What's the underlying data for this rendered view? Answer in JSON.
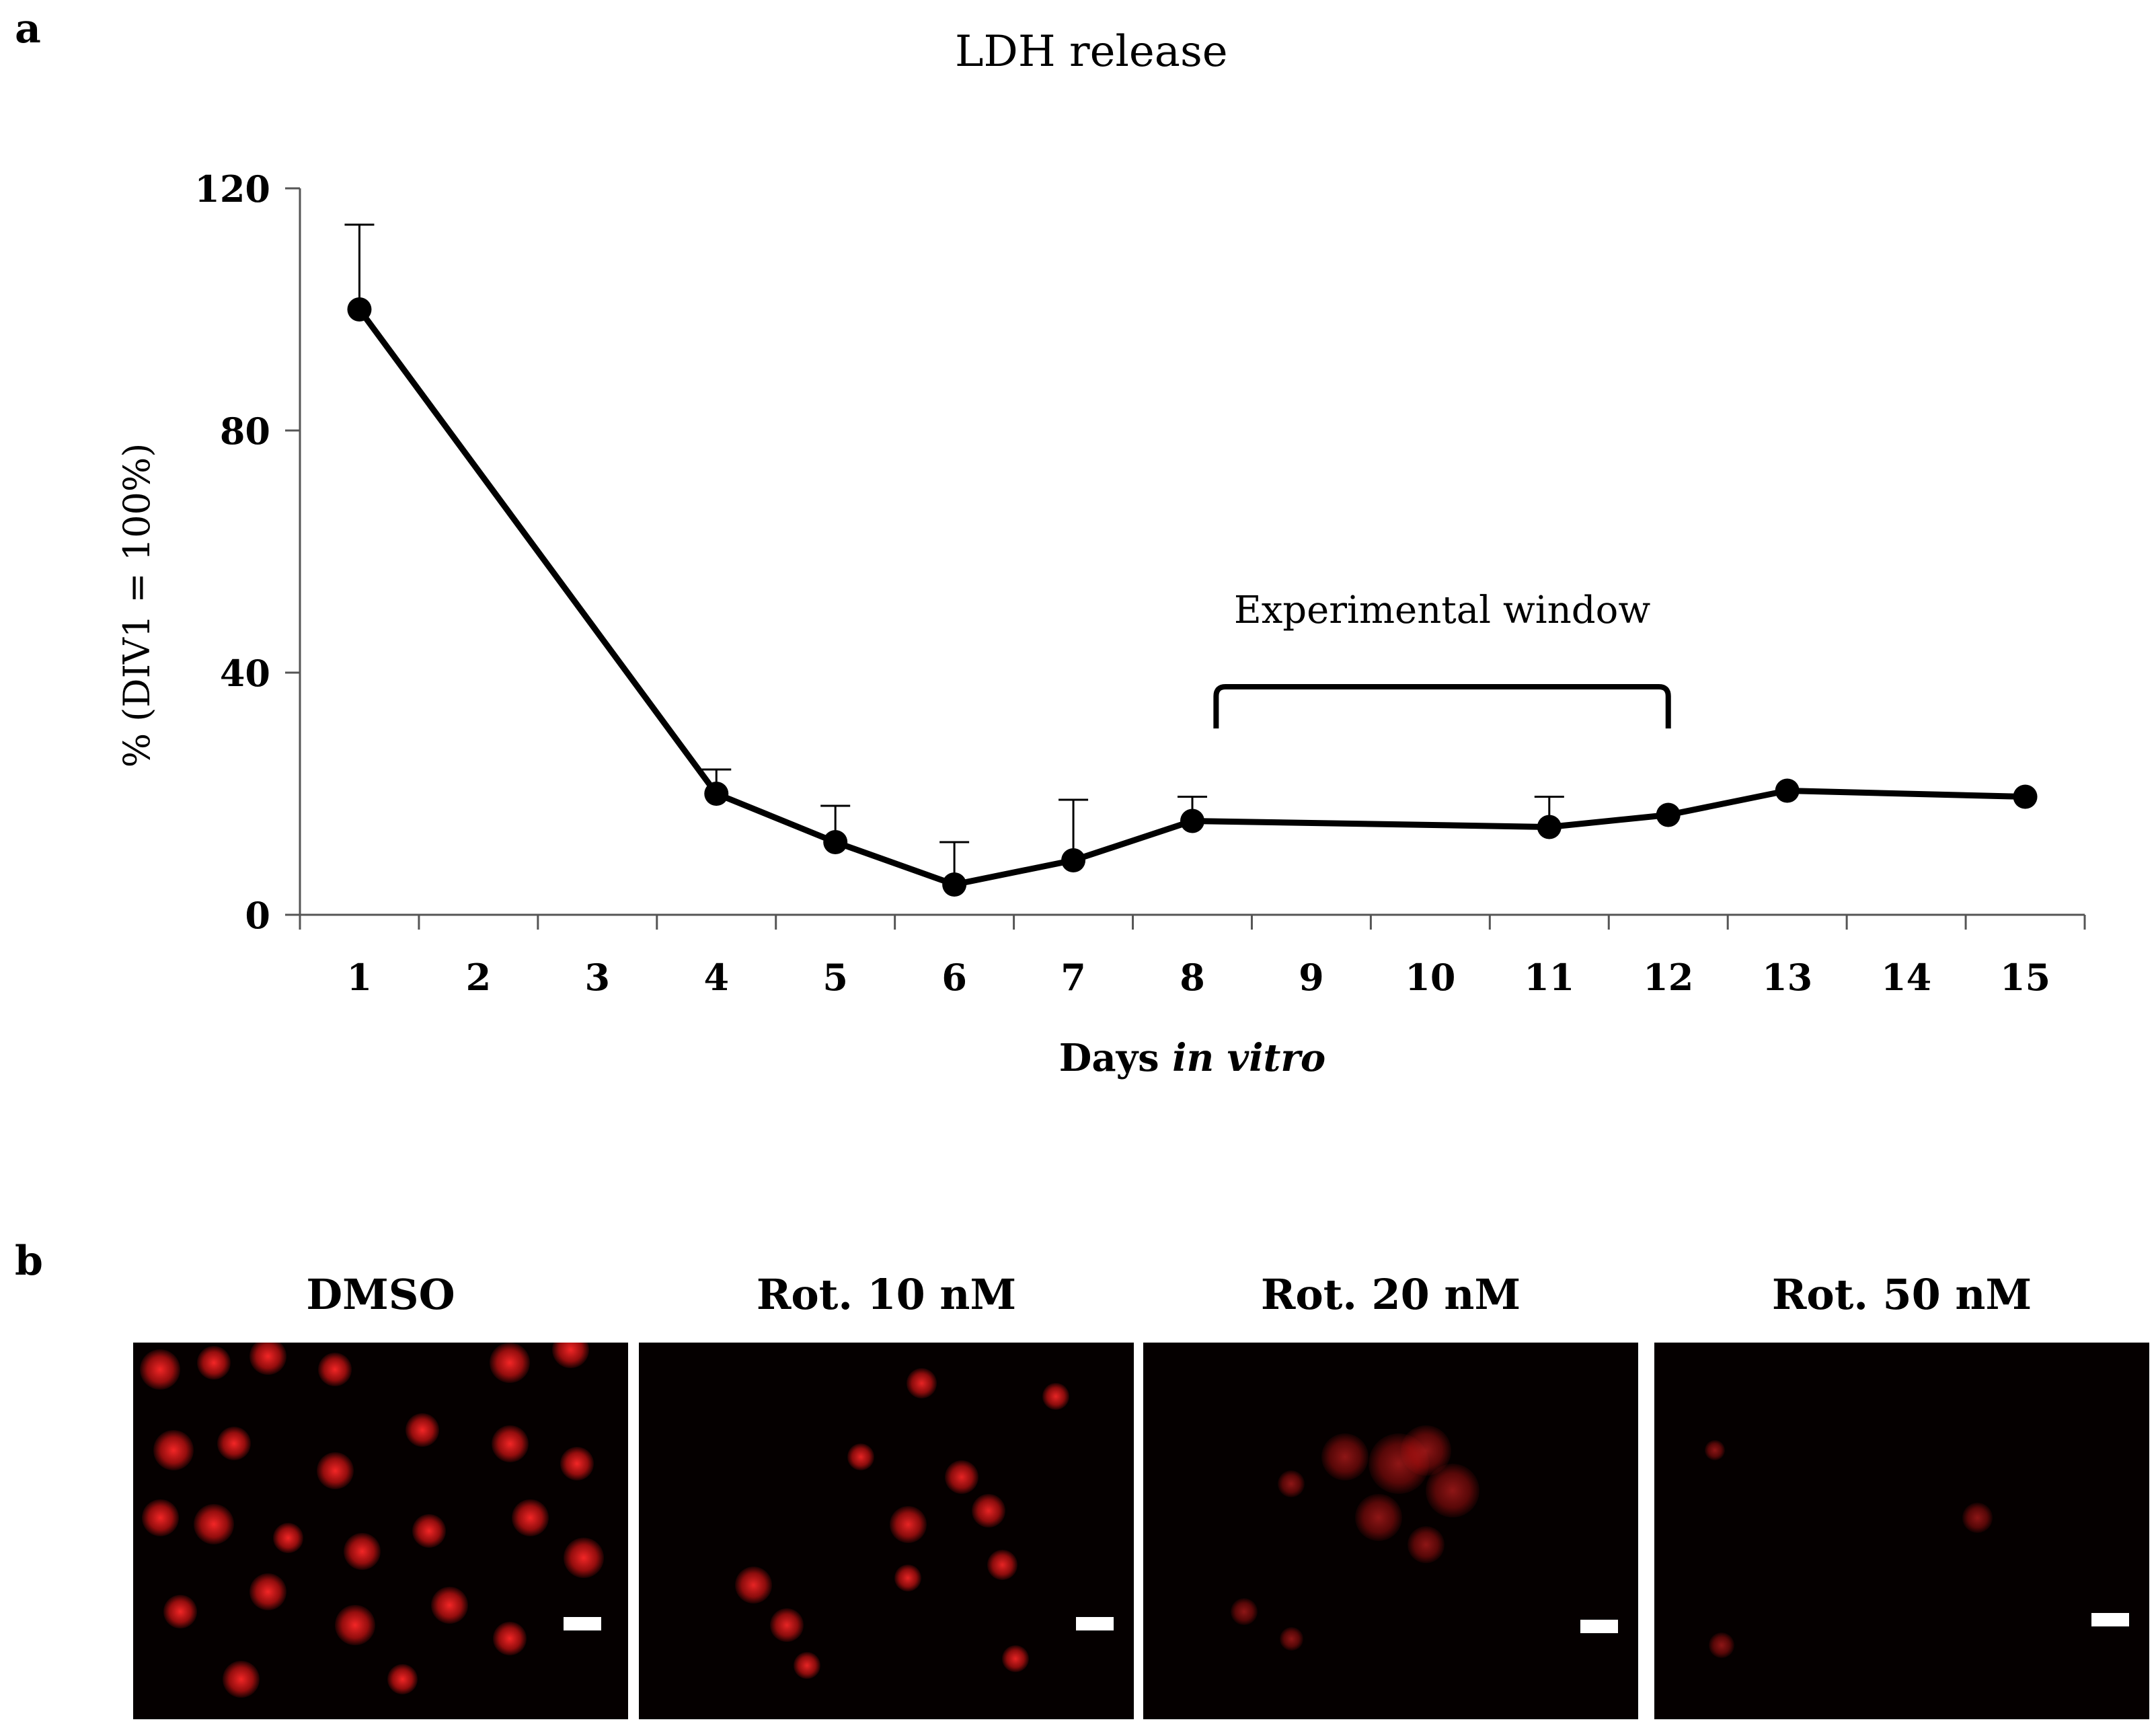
{
  "panels": {
    "a": {
      "letter": "a"
    },
    "b": {
      "letter": "b"
    }
  },
  "chart_data": {
    "type": "line",
    "title": "LDH release",
    "xlabel_regular": "Days ",
    "xlabel_italic": "in vitro",
    "ylabel": "% (DIV1 = 100%)",
    "categories": [
      "1",
      "2",
      "3",
      "4",
      "5",
      "6",
      "7",
      "8",
      "9",
      "10",
      "11",
      "12",
      "13",
      "14",
      "15"
    ],
    "ylim": [
      0,
      120
    ],
    "yticks": [
      0,
      40,
      80,
      120
    ],
    "grid": false,
    "series": [
      {
        "color": "#000000",
        "points": [
          {
            "x": 1,
            "y": 100,
            "err": 14
          },
          {
            "x": 4,
            "y": 20,
            "err": 4
          },
          {
            "x": 5,
            "y": 12,
            "err": 6
          },
          {
            "x": 6,
            "y": 5,
            "err": 7
          },
          {
            "x": 7,
            "y": 9,
            "err": 10
          },
          {
            "x": 8,
            "y": 15.5,
            "err": 4
          },
          {
            "x": 11,
            "y": 14.5,
            "err": 5
          },
          {
            "x": 12,
            "y": 16.5,
            "err": 0
          },
          {
            "x": 13,
            "y": 20.5,
            "err": 0
          },
          {
            "x": 15,
            "y": 19.5,
            "err": 0
          }
        ]
      }
    ],
    "annotation": {
      "text": "Experimental window",
      "from_x": 8.2,
      "to_x": 12,
      "y": 39
    }
  },
  "micrographs": [
    {
      "label": "DMSO",
      "stain_color": "#ff1a1a",
      "intensity": "high"
    },
    {
      "label": "Rot. 10 nM",
      "stain_color": "#ff1a1a",
      "intensity": "medium"
    },
    {
      "label": "Rot. 20 nM",
      "stain_color": "#ff1a1a",
      "intensity": "low"
    },
    {
      "label": "Rot. 50 nM",
      "stain_color": "#ff1a1a",
      "intensity": "very low"
    }
  ]
}
